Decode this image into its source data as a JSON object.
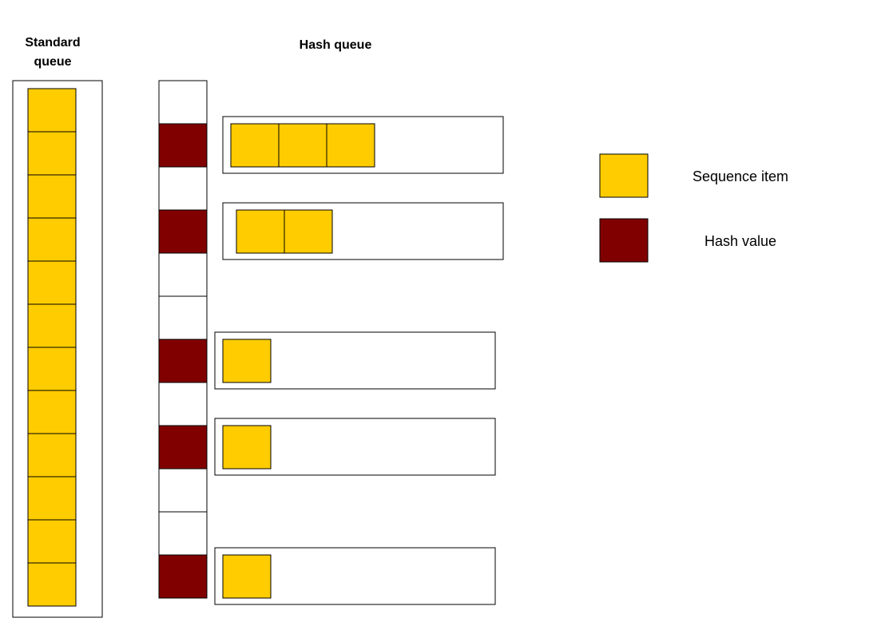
{
  "standard_queue": {
    "title_line1": "Standard",
    "title_line2": "queue",
    "item_count": 12
  },
  "hash_queue": {
    "title": "Hash queue",
    "slots": [
      "empty",
      "hash",
      "empty",
      "hash",
      "empty",
      "empty",
      "hash",
      "empty",
      "hash",
      "empty",
      "empty",
      "hash"
    ],
    "chains": [
      {
        "slot": 1,
        "items": 3
      },
      {
        "slot": 3,
        "items": 2
      },
      {
        "slot": 6,
        "items": 1
      },
      {
        "slot": 8,
        "items": 1
      },
      {
        "slot": 11,
        "items": 1
      }
    ]
  },
  "legend": {
    "sequence_item_label": "Sequence item",
    "hash_value_label": "Hash value"
  },
  "colors": {
    "sequence_item": "#FFCC00",
    "hash_value": "#800000",
    "empty_slot": "#FFFFFF",
    "border": "#000000"
  }
}
